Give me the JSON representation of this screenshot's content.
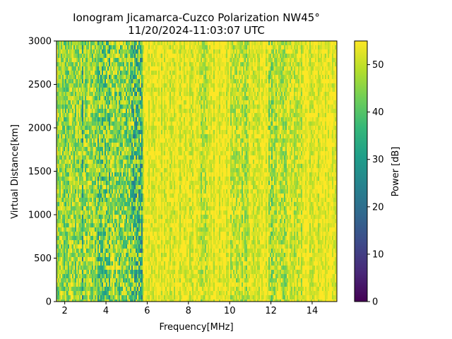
{
  "chart_data": {
    "type": "heatmap",
    "title": "Ionogram Jicamarca-Cuzco Polarization NW45°",
    "subtitle": "11/20/2024-11:03:07 UTC",
    "xlabel": "Frequency[MHz]",
    "ylabel": "Virtual Distance[km]",
    "xlim": [
      1.6,
      15.2
    ],
    "ylim": [
      0,
      3000
    ],
    "xticks": [
      2,
      4,
      6,
      8,
      10,
      12,
      14
    ],
    "yticks": [
      0,
      500,
      1000,
      1500,
      2000,
      2500,
      3000
    ],
    "colorbar": {
      "label": "Power [dB]",
      "min": 0,
      "max": 55,
      "ticks": [
        0,
        10,
        20,
        30,
        40,
        50
      ],
      "colormap": "viridis"
    },
    "background_level_db": 55,
    "bands": [
      {
        "f_start": 1.6,
        "f_end": 2.8,
        "mean_db": 47
      },
      {
        "f_start": 2.8,
        "f_end": 2.9,
        "mean_db": 40
      },
      {
        "f_start": 2.9,
        "f_end": 3.6,
        "mean_db": 47
      },
      {
        "f_start": 3.6,
        "f_end": 4.2,
        "mean_db": 42
      },
      {
        "f_start": 4.2,
        "f_end": 4.6,
        "mean_db": 45
      },
      {
        "f_start": 4.6,
        "f_end": 5.2,
        "mean_db": 44
      },
      {
        "f_start": 5.2,
        "f_end": 5.8,
        "mean_db": 38
      },
      {
        "f_start": 5.8,
        "f_end": 8.5,
        "mean_db": 53
      },
      {
        "f_start": 8.5,
        "f_end": 8.9,
        "mean_db": 50
      },
      {
        "f_start": 8.9,
        "f_end": 10.0,
        "mean_db": 53
      },
      {
        "f_start": 10.0,
        "f_end": 11.0,
        "mean_db": 50
      },
      {
        "f_start": 11.0,
        "f_end": 11.9,
        "mean_db": 53
      },
      {
        "f_start": 11.9,
        "f_end": 12.1,
        "mean_db": 47
      },
      {
        "f_start": 12.1,
        "f_end": 12.8,
        "mean_db": 49
      },
      {
        "f_start": 12.8,
        "f_end": 13.5,
        "mean_db": 51
      },
      {
        "f_start": 13.5,
        "f_end": 15.2,
        "mean_db": 53
      }
    ]
  }
}
